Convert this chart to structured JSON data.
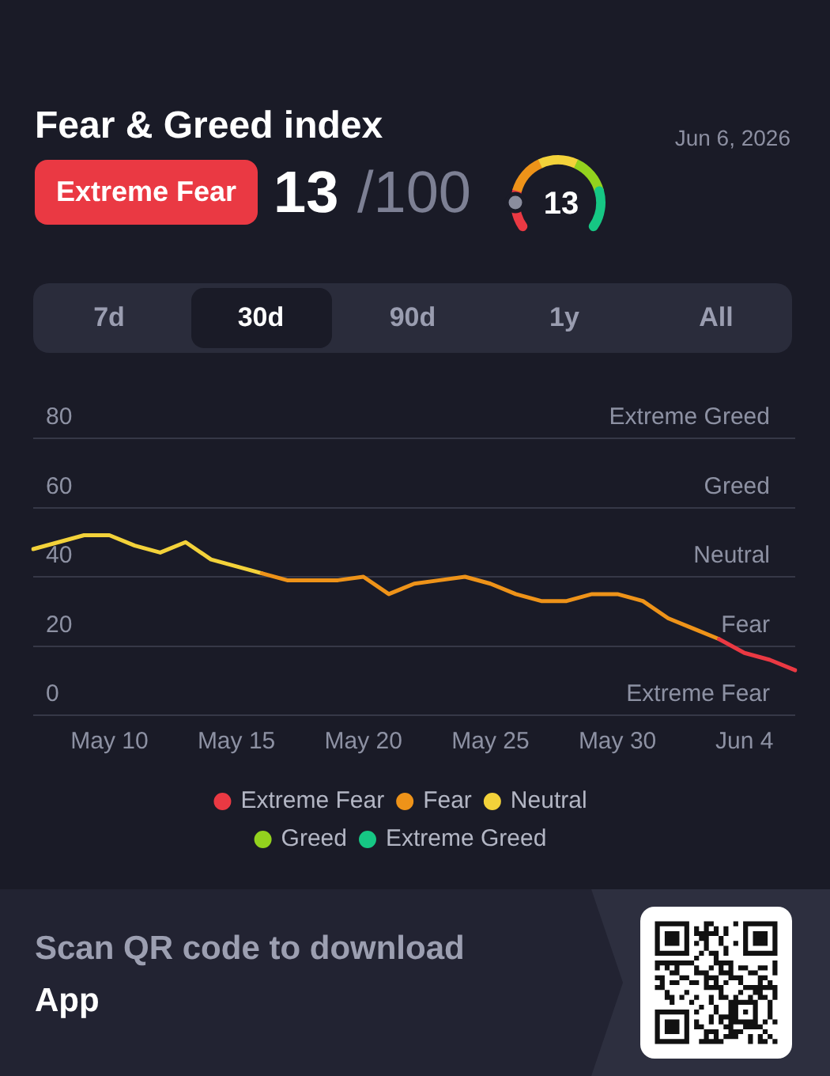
{
  "chart_data": {
    "type": "line",
    "title": "Fear & Greed index",
    "subtitle": "Jun 6, 2026",
    "annotations": [
      "Extreme Fear",
      "13",
      "/100",
      "13",
      "7d",
      "30d",
      "90d",
      "1y",
      "All",
      "Scan QR code to download",
      "App",
      "Extreme Fear",
      "Fear",
      "Neutral",
      "Greed",
      "Extreme Greed"
    ],
    "categories": [
      null,
      null,
      null,
      "May 10",
      null,
      null,
      null,
      null,
      "May 15",
      null,
      null,
      null,
      null,
      "May 20",
      null,
      null,
      null,
      null,
      "May 25",
      null,
      null,
      null,
      null,
      "May 30",
      null,
      null,
      null,
      null,
      "Jun 4",
      null,
      null
    ],
    "series": [
      {
        "name": "Extreme Fear",
        "color": "#ea3943",
        "values": [
          null,
          null,
          null,
          null,
          null,
          null,
          null,
          null,
          null,
          null,
          null,
          null,
          null,
          null,
          null,
          null,
          null,
          null,
          null,
          null,
          null,
          null,
          null,
          null,
          null,
          null,
          null,
          22,
          18,
          16,
          13
        ]
      },
      {
        "name": "Fear",
        "color": "#ee9319",
        "values": [
          null,
          null,
          null,
          null,
          null,
          null,
          null,
          null,
          null,
          41,
          39,
          39,
          39,
          40,
          35,
          38,
          39,
          40,
          38,
          35,
          33,
          33,
          35,
          35,
          33,
          28,
          25,
          22,
          null,
          null,
          null
        ]
      },
      {
        "name": "Neutral",
        "color": "#f3d23a",
        "values": [
          48,
          50,
          52,
          52,
          49,
          47,
          50,
          45,
          43,
          41,
          null,
          null,
          null,
          null,
          null,
          null,
          null,
          null,
          null,
          null,
          null,
          null,
          null,
          null,
          null,
          null,
          null,
          null,
          null,
          null,
          null
        ]
      },
      {
        "name": "Greed",
        "color": "#93d21e",
        "values": [
          null,
          null,
          null,
          null,
          null,
          null,
          null,
          null,
          null,
          null,
          null,
          null,
          null,
          null,
          null,
          null,
          null,
          null,
          null,
          null,
          null,
          null,
          null,
          null,
          null,
          null,
          null,
          null,
          null,
          null,
          null
        ]
      },
      {
        "name": "Extreme Greed",
        "color": "#16c784",
        "values": [
          null,
          null,
          null,
          null,
          null,
          null,
          null,
          null,
          null,
          null,
          null,
          null,
          null,
          null,
          null,
          null,
          null,
          null,
          null,
          null,
          null,
          null,
          null,
          null,
          null,
          null,
          null,
          null,
          null,
          null,
          null
        ]
      }
    ],
    "ylim": [
      0,
      80
    ],
    "yticks": [
      0,
      20,
      40,
      60,
      80
    ],
    "grid": "y",
    "legend": "bottom",
    "marker": "none",
    "line_style": "solid"
  }
}
